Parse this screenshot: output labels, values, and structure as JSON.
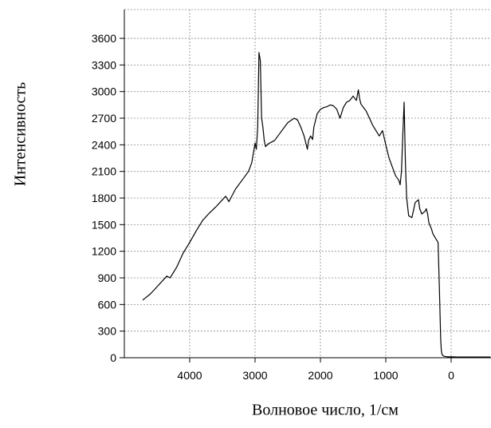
{
  "chart_data": {
    "type": "line",
    "title": "",
    "xlabel": "Волновое число, 1/см",
    "ylabel": "Интенсивность",
    "xlim": [
      -600,
      5000
    ],
    "ylim": [
      0,
      3700
    ],
    "x_reversed": true,
    "grid": true,
    "x_ticks": [
      4000,
      3000,
      2000,
      1000,
      0
    ],
    "y_ticks": [
      0,
      300,
      600,
      900,
      1200,
      1500,
      1800,
      2100,
      2400,
      2700,
      3000,
      3300,
      3600
    ],
    "series": [
      {
        "color": "#000000",
        "x": [
          4720,
          4600,
          4500,
          4400,
          4350,
          4300,
          4200,
          4100,
          4000,
          3900,
          3800,
          3700,
          3600,
          3500,
          3450,
          3400,
          3300,
          3200,
          3100,
          3050,
          3000,
          2980,
          2960,
          2940,
          2920,
          2900,
          2880,
          2860,
          2840,
          2800,
          2700,
          2600,
          2500,
          2400,
          2350,
          2300,
          2250,
          2200,
          2180,
          2150,
          2120,
          2100,
          2050,
          2000,
          1950,
          1900,
          1850,
          1800,
          1750,
          1700,
          1650,
          1600,
          1550,
          1500,
          1450,
          1420,
          1400,
          1380,
          1300,
          1250,
          1200,
          1150,
          1100,
          1050,
          1000,
          950,
          900,
          850,
          800,
          780,
          760,
          740,
          720,
          700,
          680,
          650,
          600,
          550,
          500,
          480,
          450,
          400,
          380,
          360,
          340,
          300,
          280,
          250,
          200,
          180,
          160,
          150,
          140,
          120,
          100,
          50,
          0,
          -100,
          -300,
          -600
        ],
        "y": [
          650,
          720,
          800,
          880,
          920,
          900,
          1020,
          1180,
          1300,
          1430,
          1550,
          1630,
          1700,
          1780,
          1820,
          1760,
          1900,
          2000,
          2100,
          2200,
          2420,
          2350,
          2600,
          3440,
          3350,
          2700,
          2600,
          2450,
          2380,
          2410,
          2450,
          2550,
          2650,
          2700,
          2680,
          2600,
          2500,
          2350,
          2450,
          2500,
          2460,
          2600,
          2750,
          2800,
          2820,
          2830,
          2850,
          2840,
          2800,
          2700,
          2820,
          2880,
          2900,
          2950,
          2900,
          3020,
          2920,
          2860,
          2780,
          2700,
          2620,
          2560,
          2500,
          2560,
          2400,
          2250,
          2150,
          2050,
          2000,
          1950,
          2100,
          2500,
          2880,
          2200,
          1800,
          1600,
          1580,
          1750,
          1780,
          1680,
          1620,
          1650,
          1680,
          1620,
          1520,
          1450,
          1400,
          1360,
          1300,
          800,
          200,
          80,
          40,
          20,
          15,
          10,
          10,
          8,
          8,
          8
        ]
      }
    ]
  }
}
